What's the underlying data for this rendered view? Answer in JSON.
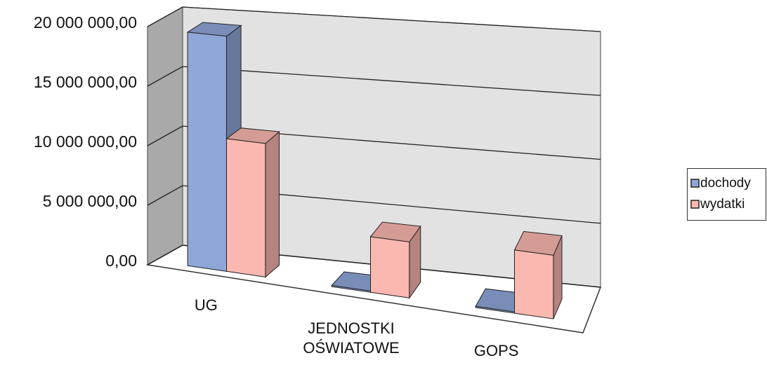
{
  "chart_data": {
    "type": "bar3d",
    "categories": [
      "UG",
      "JEDNOSTKI OŚWIATOWE",
      "GOPS"
    ],
    "series": [
      {
        "name": "dochody",
        "color": "#8fa6d8",
        "values": [
          19500000,
          100000,
          100000
        ]
      },
      {
        "name": "wydatki",
        "color": "#fbb8b0",
        "values": [
          11000000,
          4500000,
          5000000
        ]
      }
    ],
    "ylim": [
      0,
      20000000
    ],
    "yticks": [
      {
        "value": 0,
        "label": "0,00"
      },
      {
        "value": 5000000,
        "label": "5 000 000,00"
      },
      {
        "value": 10000000,
        "label": "10 000 000,00"
      },
      {
        "value": 15000000,
        "label": "15 000 000,00"
      },
      {
        "value": 20000000,
        "label": "20 000 000,00"
      }
    ],
    "grid": true,
    "legend": "right"
  }
}
